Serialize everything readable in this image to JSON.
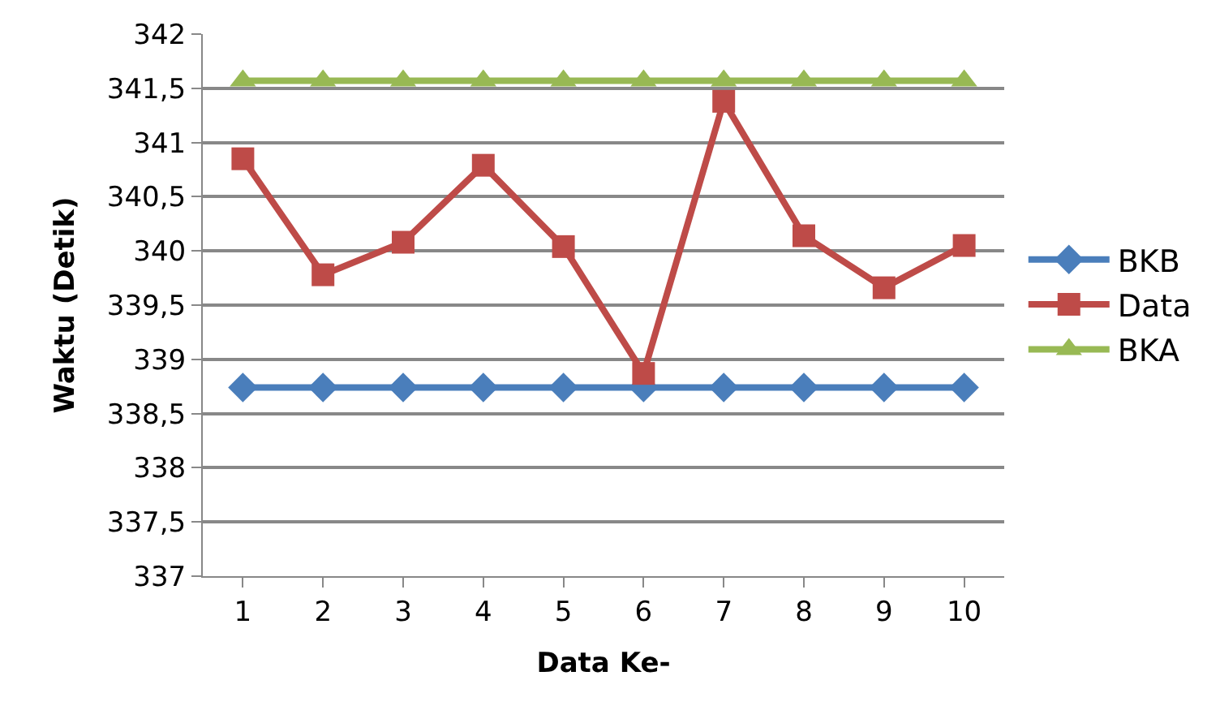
{
  "chart_data": {
    "type": "line",
    "xlabel": "Data Ke-",
    "ylabel": "Waktu (Detik)",
    "categories": [
      "1",
      "2",
      "3",
      "4",
      "5",
      "6",
      "7",
      "8",
      "9",
      "10"
    ],
    "series": [
      {
        "name": "BKB",
        "color": "#4a7ebb",
        "marker": "diamond",
        "values": [
          338.74,
          338.74,
          338.74,
          338.74,
          338.74,
          338.74,
          338.74,
          338.74,
          338.74,
          338.74
        ]
      },
      {
        "name": "Data",
        "color": "#be4b48",
        "marker": "square",
        "values": [
          340.85,
          339.78,
          340.08,
          340.79,
          340.04,
          338.87,
          341.38,
          340.14,
          339.66,
          340.05
        ]
      },
      {
        "name": "BKA",
        "color": "#98b954",
        "marker": "triangle",
        "values": [
          341.57,
          341.57,
          341.57,
          341.57,
          341.57,
          341.57,
          341.57,
          341.57,
          341.57,
          341.57
        ]
      }
    ],
    "ylim": [
      337,
      342
    ],
    "yticks": [
      337,
      {
        "value": 337.5,
        "label": "337,5"
      },
      338,
      {
        "value": 338.5,
        "label": "338,5"
      },
      339,
      {
        "value": 339.5,
        "label": "339,5"
      },
      340,
      {
        "value": 340.5,
        "label": "340,5"
      },
      341,
      {
        "value": 341.5,
        "label": "341,5"
      },
      342
    ],
    "grid": "y",
    "legend": "right",
    "line_style": "solid"
  }
}
